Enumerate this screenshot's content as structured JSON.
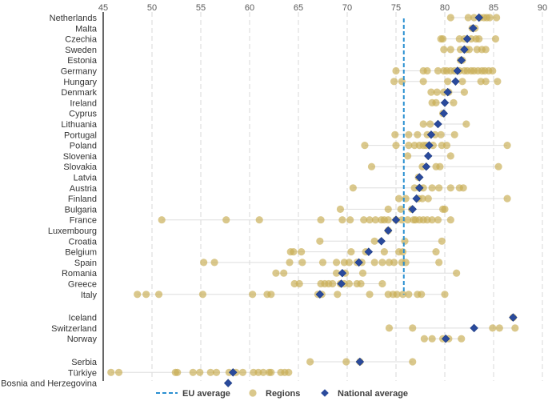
{
  "chart_data": {
    "type": "scatter",
    "orientation": "horizontal-dot-plot",
    "xlim": [
      45,
      90
    ],
    "xticks": [
      45,
      50,
      55,
      60,
      65,
      70,
      75,
      80,
      85,
      90
    ],
    "eu_average": 75.8,
    "colors": {
      "regions": "#c9ae55",
      "national": "#2a4a9c",
      "eu_line": "#2a8fd1",
      "grid": "#d9d9d9",
      "axis": "#333333"
    },
    "legend": {
      "eu_average": "EU average",
      "regions": "Regions",
      "national": "National average"
    },
    "groups": [
      [
        {
          "country": "Netherlands",
          "national": 83.5,
          "regions": [
            80.6,
            82.4,
            83.0,
            83.6,
            84.0,
            84.3,
            84.6,
            85.3
          ]
        },
        {
          "country": "Malta",
          "national": 82.9,
          "regions": [
            82.8,
            83.1
          ]
        },
        {
          "country": "Czechia",
          "national": 82.3,
          "regions": [
            79.6,
            79.8,
            81.5,
            82.0,
            82.7,
            83.2,
            83.5,
            85.2
          ]
        },
        {
          "country": "Sweden",
          "national": 82.0,
          "regions": [
            79.9,
            80.6,
            81.6,
            82.2,
            82.5,
            83.3,
            83.8,
            84.2
          ]
        },
        {
          "country": "Estonia",
          "national": 81.7,
          "regions": [
            81.6,
            81.8
          ]
        },
        {
          "country": "Germany",
          "national": 81.3,
          "regions": [
            75.0,
            77.8,
            78.2,
            79.3,
            79.9,
            80.2,
            80.6,
            81.0,
            81.5,
            82.0,
            82.3,
            82.7,
            83.0,
            83.4,
            83.8,
            84.1,
            84.5,
            84.9
          ]
        },
        {
          "country": "Hungary",
          "national": 81.1,
          "regions": [
            74.8,
            75.6,
            77.8,
            80.3,
            81.8,
            83.7,
            84.2,
            85.4
          ]
        },
        {
          "country": "Denmark",
          "national": 80.3,
          "regions": [
            78.6,
            79.2,
            79.9,
            80.4,
            82.0
          ]
        },
        {
          "country": "Ireland",
          "national": 80.0,
          "regions": [
            78.7,
            79.1,
            80.9
          ]
        },
        {
          "country": "Cyprus",
          "national": 79.9,
          "regions": [
            79.8
          ]
        },
        {
          "country": "Lithuania",
          "national": 79.3,
          "regions": [
            77.8,
            78.5,
            82.2
          ]
        },
        {
          "country": "Portugal",
          "national": 78.6,
          "regions": [
            74.9,
            76.3,
            77.2,
            78.2,
            79.0,
            79.6,
            81.0
          ]
        },
        {
          "country": "Poland",
          "national": 78.4,
          "regions": [
            71.8,
            75.0,
            76.3,
            76.9,
            77.4,
            77.8,
            78.1,
            78.8,
            79.7,
            80.2,
            86.4
          ]
        },
        {
          "country": "Slovenia",
          "national": 78.3,
          "regions": [
            76.2,
            80.6
          ]
        },
        {
          "country": "Slovakia",
          "national": 78.1,
          "regions": [
            72.5,
            77.7,
            79.1,
            79.5,
            85.5
          ]
        },
        {
          "country": "Latvia",
          "national": 77.4,
          "regions": [
            77.3
          ]
        },
        {
          "country": "Austria",
          "national": 77.4,
          "regions": [
            70.6,
            76.9,
            77.4,
            77.8,
            78.7,
            79.4,
            80.6,
            81.5,
            81.9
          ]
        },
        {
          "country": "Finland",
          "national": 77.1,
          "regions": [
            75.3,
            76.0,
            77.3,
            77.7,
            78.3,
            86.4
          ]
        },
        {
          "country": "Bulgaria",
          "national": 76.7,
          "regions": [
            69.3,
            74.2,
            75.5,
            76.6,
            79.8,
            80.0
          ]
        },
        {
          "country": "France",
          "national": 75.0,
          "regions": [
            51.0,
            57.6,
            61.0,
            67.3,
            69.5,
            70.3,
            71.7,
            72.3,
            72.9,
            73.5,
            73.8,
            74.2,
            75.0,
            75.6,
            76.2,
            76.8,
            77.0,
            77.4,
            77.8,
            78.2,
            78.7,
            79.3,
            80.6
          ]
        },
        {
          "country": "Luxembourg",
          "national": 74.2,
          "regions": [
            74.2
          ]
        },
        {
          "country": "Croatia",
          "national": 73.5,
          "regions": [
            67.2,
            72.8,
            75.9,
            79.7
          ]
        },
        {
          "country": "Belgium",
          "national": 72.2,
          "regions": [
            64.2,
            64.5,
            65.3,
            70.4,
            71.9,
            73.8,
            75.3,
            75.7,
            79.1
          ]
        },
        {
          "country": "Spain",
          "national": 71.2,
          "regions": [
            55.3,
            56.4,
            64.1,
            65.4,
            67.5,
            68.9,
            69.7,
            70.2,
            71.0,
            71.5,
            72.8,
            73.6,
            74.3,
            74.8,
            75.6,
            76.0,
            79.4
          ]
        },
        {
          "country": "Romania",
          "national": 69.5,
          "regions": [
            62.7,
            63.5,
            68.9,
            69.8,
            71.6,
            81.2
          ]
        },
        {
          "country": "Greece",
          "national": 69.4,
          "regions": [
            64.6,
            65.1,
            67.3,
            67.7,
            68.1,
            68.5,
            69.3,
            69.7,
            70.2,
            71.0,
            71.4,
            73.6
          ]
        },
        {
          "country": "Italy",
          "national": 67.2,
          "regions": [
            48.5,
            49.4,
            50.7,
            55.2,
            60.3,
            61.8,
            62.2,
            67.0,
            67.4,
            69.0,
            72.3,
            74.2,
            74.7,
            75.1,
            75.7,
            76.3,
            77.2,
            77.6,
            80.0
          ]
        }
      ],
      [
        {
          "country": "Iceland",
          "national": 87.0,
          "regions": [
            87.0
          ]
        },
        {
          "country": "Switzerland",
          "national": 83.0,
          "regions": [
            74.3,
            76.7,
            84.9,
            85.6,
            87.2
          ]
        },
        {
          "country": "Norway",
          "national": 80.1,
          "regions": [
            77.9,
            78.7,
            79.8,
            80.4,
            81.7
          ]
        }
      ],
      [
        {
          "country": "Serbia",
          "national": 71.3,
          "regions": [
            66.2,
            69.9,
            71.3,
            76.7
          ]
        },
        {
          "country": "Türkiye",
          "national": 58.3,
          "regions": [
            45.8,
            46.6,
            52.4,
            52.6,
            54.2,
            54.9,
            56.0,
            56.6,
            57.9,
            58.6,
            59.3,
            60.4,
            60.9,
            61.4,
            62.0,
            62.2,
            63.2,
            63.6,
            64.0
          ]
        },
        {
          "country": "Bosnia and Herzegovina",
          "national": 57.8,
          "regions": []
        }
      ]
    ]
  }
}
